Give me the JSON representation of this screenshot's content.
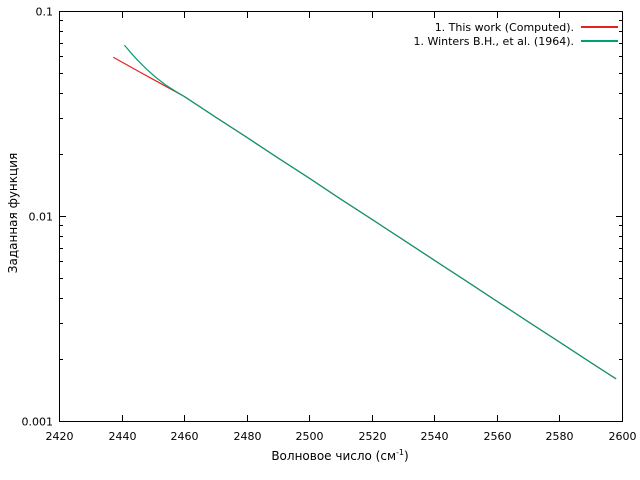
{
  "figure": {
    "background": "#ffffff",
    "axis_color": "#000000",
    "text_color": "#000000"
  },
  "chart_data": {
    "type": "line",
    "title": "",
    "xlabel": {
      "prefix": "Волновое число (см",
      "sup": "-1",
      "suffix": ")"
    },
    "ylabel": "Заданная функция",
    "x_range": [
      2420,
      2600
    ],
    "y_range": [
      0.001,
      0.1
    ],
    "y_scale": "log",
    "grid": false,
    "legend_position": "top-right-inside",
    "x_ticks": [
      2420,
      2440,
      2460,
      2480,
      2500,
      2520,
      2540,
      2560,
      2580,
      2600
    ],
    "y_ticks": [
      {
        "value": 0.1,
        "label": "0.1"
      },
      {
        "value": 0.01,
        "label": "0.01"
      },
      {
        "value": 0.001,
        "label": "0.001"
      }
    ],
    "y_minor_ticks": [
      0.09,
      0.08,
      0.07,
      0.06,
      0.05,
      0.04,
      0.03,
      0.02,
      0.009,
      0.008,
      0.007,
      0.006,
      0.005,
      0.004,
      0.003,
      0.002
    ],
    "series": [
      {
        "name": "1. This work (Computed).",
        "color": "#e4231c",
        "points": [
          [
            2437.5,
            0.0593
          ],
          [
            2441,
            0.0554
          ],
          [
            2445,
            0.0512
          ],
          [
            2450,
            0.0465
          ],
          [
            2455,
            0.0422
          ],
          [
            2460,
            0.0383
          ],
          [
            2470,
            0.0304
          ],
          [
            2480,
            0.0242
          ],
          [
            2490,
            0.0192
          ],
          [
            2500,
            0.0153
          ],
          [
            2510,
            0.0121
          ],
          [
            2520,
            0.00964
          ],
          [
            2530,
            0.00766
          ],
          [
            2540,
            0.00609
          ],
          [
            2550,
            0.00484
          ],
          [
            2560,
            0.00384
          ],
          [
            2570,
            0.00305
          ],
          [
            2580,
            0.00243
          ],
          [
            2590,
            0.00193
          ],
          [
            2598,
            0.00161
          ]
        ]
      },
      {
        "name": "1. Winters B.H., et al. (1964).",
        "color": "#009e73",
        "points": [
          [
            2441,
            0.0679
          ],
          [
            2443,
            0.0625
          ],
          [
            2445,
            0.0578
          ],
          [
            2448,
            0.052
          ],
          [
            2451,
            0.0474
          ],
          [
            2454,
            0.0437
          ],
          [
            2457,
            0.0408
          ],
          [
            2460,
            0.0383
          ],
          [
            2470,
            0.0304
          ],
          [
            2480,
            0.0242
          ],
          [
            2490,
            0.0192
          ],
          [
            2500,
            0.0153
          ],
          [
            2510,
            0.0121
          ],
          [
            2520,
            0.00964
          ],
          [
            2530,
            0.00766
          ],
          [
            2540,
            0.00609
          ],
          [
            2550,
            0.00484
          ],
          [
            2560,
            0.00384
          ],
          [
            2570,
            0.00305
          ],
          [
            2580,
            0.00243
          ],
          [
            2590,
            0.00193
          ],
          [
            2598,
            0.00161
          ]
        ]
      }
    ]
  }
}
